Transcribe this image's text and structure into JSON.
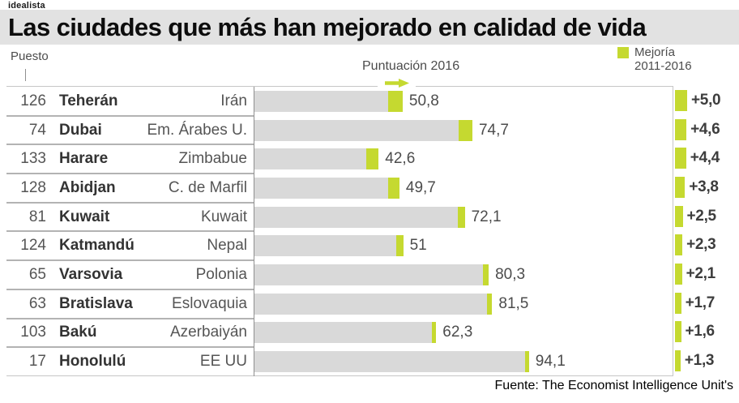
{
  "brand": "idealista",
  "title": "Las ciudades que más han mejorado en calidad de vida",
  "header": {
    "rank_label": "Puesto",
    "score_label": "Puntuación 2016",
    "legend_line1": "Mejoría",
    "legend_line2": "2011-2016"
  },
  "footer": {
    "source": "Fuente: The Economist Intelligence Unit's"
  },
  "colors": {
    "accent_green": "#c5d930",
    "bar_gray": "#d9d9d9",
    "title_band": "#e2e2e2"
  },
  "chart_data": {
    "type": "bar",
    "orientation": "horizontal",
    "title": "Las ciudades que más han mejorado en calidad de vida",
    "xlabel": "Puntuación 2016",
    "xlim": [
      0,
      100
    ],
    "grid": false,
    "legend": {
      "label": "Mejoría 2011-2016",
      "position": "top-right"
    },
    "series": [
      {
        "name": "Puntuación 2016",
        "values": [
          50.8,
          74.7,
          42.6,
          49.7,
          72.1,
          51,
          80.3,
          81.5,
          62.3,
          94.1
        ]
      },
      {
        "name": "Mejoría 2011-2016",
        "values": [
          5.0,
          4.6,
          4.4,
          3.8,
          2.5,
          2.3,
          2.1,
          1.7,
          1.6,
          1.3
        ]
      }
    ],
    "rows": [
      {
        "rank": "126",
        "city": "Teherán",
        "country": "Irán",
        "score": 50.8,
        "score_label": "50,8",
        "improvement": 5.0,
        "improvement_label": "+5,0"
      },
      {
        "rank": "74",
        "city": "Dubai",
        "country": "Em. Árabes U.",
        "score": 74.7,
        "score_label": "74,7",
        "improvement": 4.6,
        "improvement_label": "+4,6"
      },
      {
        "rank": "133",
        "city": "Harare",
        "country": "Zimbabue",
        "score": 42.6,
        "score_label": "42,6",
        "improvement": 4.4,
        "improvement_label": "+4,4"
      },
      {
        "rank": "128",
        "city": "Abidjan",
        "country": "C. de Marfil",
        "score": 49.7,
        "score_label": "49,7",
        "improvement": 3.8,
        "improvement_label": "+3,8"
      },
      {
        "rank": "81",
        "city": "Kuwait",
        "country": "Kuwait",
        "score": 72.1,
        "score_label": "72,1",
        "improvement": 2.5,
        "improvement_label": "+2,5"
      },
      {
        "rank": "124",
        "city": "Katmandú",
        "country": "Nepal",
        "score": 51,
        "score_label": "51",
        "improvement": 2.3,
        "improvement_label": "+2,3"
      },
      {
        "rank": "65",
        "city": "Varsovia",
        "country": "Polonia",
        "score": 80.3,
        "score_label": "80,3",
        "improvement": 2.1,
        "improvement_label": "+2,1"
      },
      {
        "rank": "63",
        "city": "Bratislava",
        "country": "Eslovaquia",
        "score": 81.5,
        "score_label": "81,5",
        "improvement": 1.7,
        "improvement_label": "+1,7"
      },
      {
        "rank": "103",
        "city": "Bakú",
        "country": "Azerbaiyán",
        "score": 62.3,
        "score_label": "62,3",
        "improvement": 1.6,
        "improvement_label": "+1,6"
      },
      {
        "rank": "17",
        "city": "Honolulú",
        "country": "EE UU",
        "score": 94.1,
        "score_label": "94,1",
        "improvement": 1.3,
        "improvement_label": "+1,3"
      }
    ],
    "source": "Fuente: The Economist Intelligence Unit's"
  }
}
